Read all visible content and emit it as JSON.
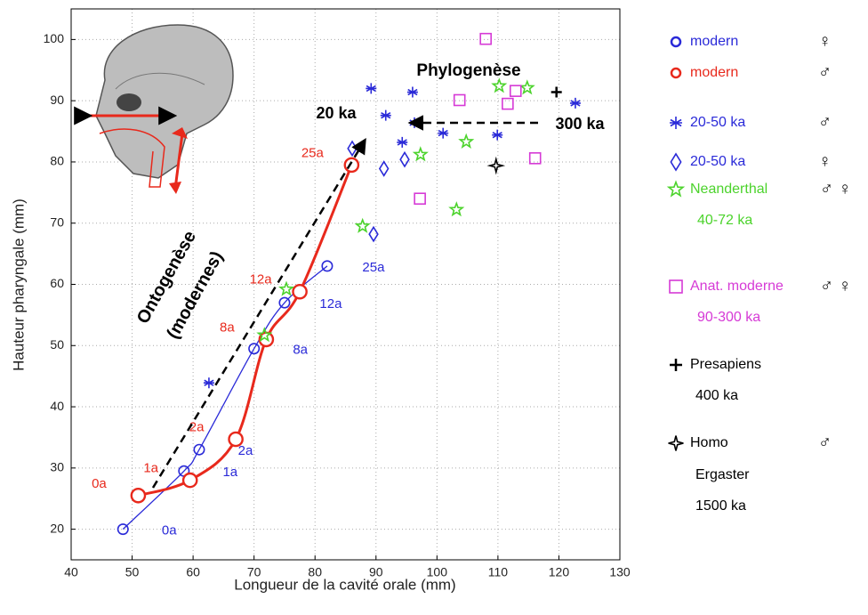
{
  "chart_data": {
    "type": "scatter",
    "x_label": "Longueur de la cavité orale (mm)",
    "y_label": "Hauteur pharyngale (mm)",
    "xlim": [
      40,
      130
    ],
    "ylim": [
      15,
      105
    ],
    "xticks": [
      40,
      50,
      60,
      70,
      80,
      90,
      100,
      110,
      120,
      130
    ],
    "yticks": [
      20,
      30,
      40,
      50,
      60,
      70,
      80,
      90,
      100
    ],
    "grid": true,
    "annotations": [
      "Phylogenèse",
      "20 ka",
      "300 ka",
      "Ontogenèse",
      "(modernes)"
    ],
    "series": [
      {
        "name": "modern",
        "sex": "♀",
        "color": "#2a2ad8",
        "marker": "circle",
        "line": true,
        "x": [
          48.5,
          58.5,
          61,
          70,
          75,
          82
        ],
        "y": [
          20,
          29.5,
          33,
          49.5,
          57,
          63
        ],
        "point_labels": [
          "0a",
          "1a",
          "2a",
          "8a",
          "12a",
          "25a"
        ]
      },
      {
        "name": "modern",
        "sex": "♂",
        "color": "#e8291c",
        "marker": "circle",
        "line": true,
        "x": [
          51,
          59.5,
          67,
          72,
          77.5,
          86
        ],
        "y": [
          25.5,
          28,
          34.7,
          51,
          58.8,
          79.5
        ],
        "point_labels": [
          "0a",
          "1a",
          "2a",
          "8a",
          "12a",
          "25a"
        ]
      },
      {
        "name": "20-50 ka",
        "sex": "♂",
        "color": "#2a2ad8",
        "marker": "asterisk",
        "x": [
          62.6,
          89.2,
          91.6,
          96,
          94.3,
          96.3,
          101,
          109.9,
          122.7
        ],
        "y": [
          43.9,
          92,
          87.6,
          91.4,
          83.2,
          86.4,
          84.7,
          84.4,
          89.6
        ]
      },
      {
        "name": "20-50 ka",
        "sex": "♀",
        "color": "#2a2ad8",
        "marker": "diamond",
        "x": [
          86.1,
          91.3,
          94.7,
          89.6
        ],
        "y": [
          82.2,
          78.9,
          80.4,
          68.2
        ]
      },
      {
        "name": "Neanderthal",
        "sex": "♂ ♀",
        "legend_lines": [
          "40-72 ka"
        ],
        "color": "#4cd32c",
        "marker": "star",
        "x": [
          75.3,
          71.7,
          87.8,
          97.3,
          104.8,
          103.2,
          110.2,
          114.8
        ],
        "y": [
          59.2,
          51.7,
          69.5,
          81.2,
          83.3,
          72.2,
          92.4,
          92.1
        ]
      },
      {
        "name": "Anat. moderne",
        "sex": "♂ ♀",
        "legend_lines": [
          "90-300 ka"
        ],
        "color": "#d63ad6",
        "marker": "square",
        "x": [
          108,
          103.7,
          111.6,
          112.9,
          116.1,
          97.2
        ],
        "y": [
          100.1,
          90.1,
          89.5,
          91.6,
          80.6,
          74
        ]
      },
      {
        "name": "Presapiens",
        "legend_lines": [
          "400 ka"
        ],
        "color": "#000000",
        "marker": "plus",
        "x": [
          119.6
        ],
        "y": [
          91.4
        ]
      },
      {
        "name": "Homo",
        "legend_lines": [
          "Ergaster",
          "1500 ka"
        ],
        "sex": "♂",
        "color": "#000000",
        "marker": "star4",
        "x": [
          109.7
        ],
        "y": [
          79.4
        ]
      }
    ]
  }
}
